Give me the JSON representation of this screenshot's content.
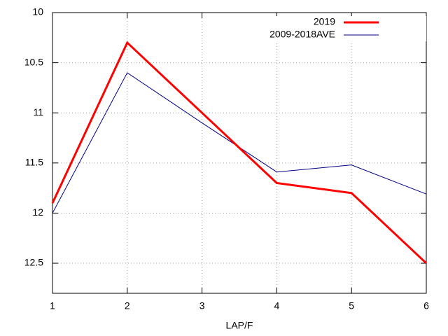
{
  "chart_data": {
    "type": "line",
    "xlabel": "LAP/F",
    "x": [
      1,
      2,
      3,
      4,
      5,
      6
    ],
    "xlim": [
      1,
      6
    ],
    "xticks": [
      1,
      2,
      3,
      4,
      5,
      6
    ],
    "ylim": [
      12.8,
      10
    ],
    "yticks": [
      10,
      10.5,
      11,
      11.5,
      12,
      12.5
    ],
    "grid": true,
    "legend": "top-right",
    "series": [
      {
        "name": "2019",
        "color": "#ff0000",
        "values": [
          11.9,
          10.3,
          11.0,
          11.7,
          11.8,
          12.5
        ]
      },
      {
        "name": "2009-2018AVE",
        "color": "#000080",
        "values": [
          12.0,
          10.6,
          11.1,
          11.59,
          11.52,
          11.81
        ]
      }
    ]
  }
}
